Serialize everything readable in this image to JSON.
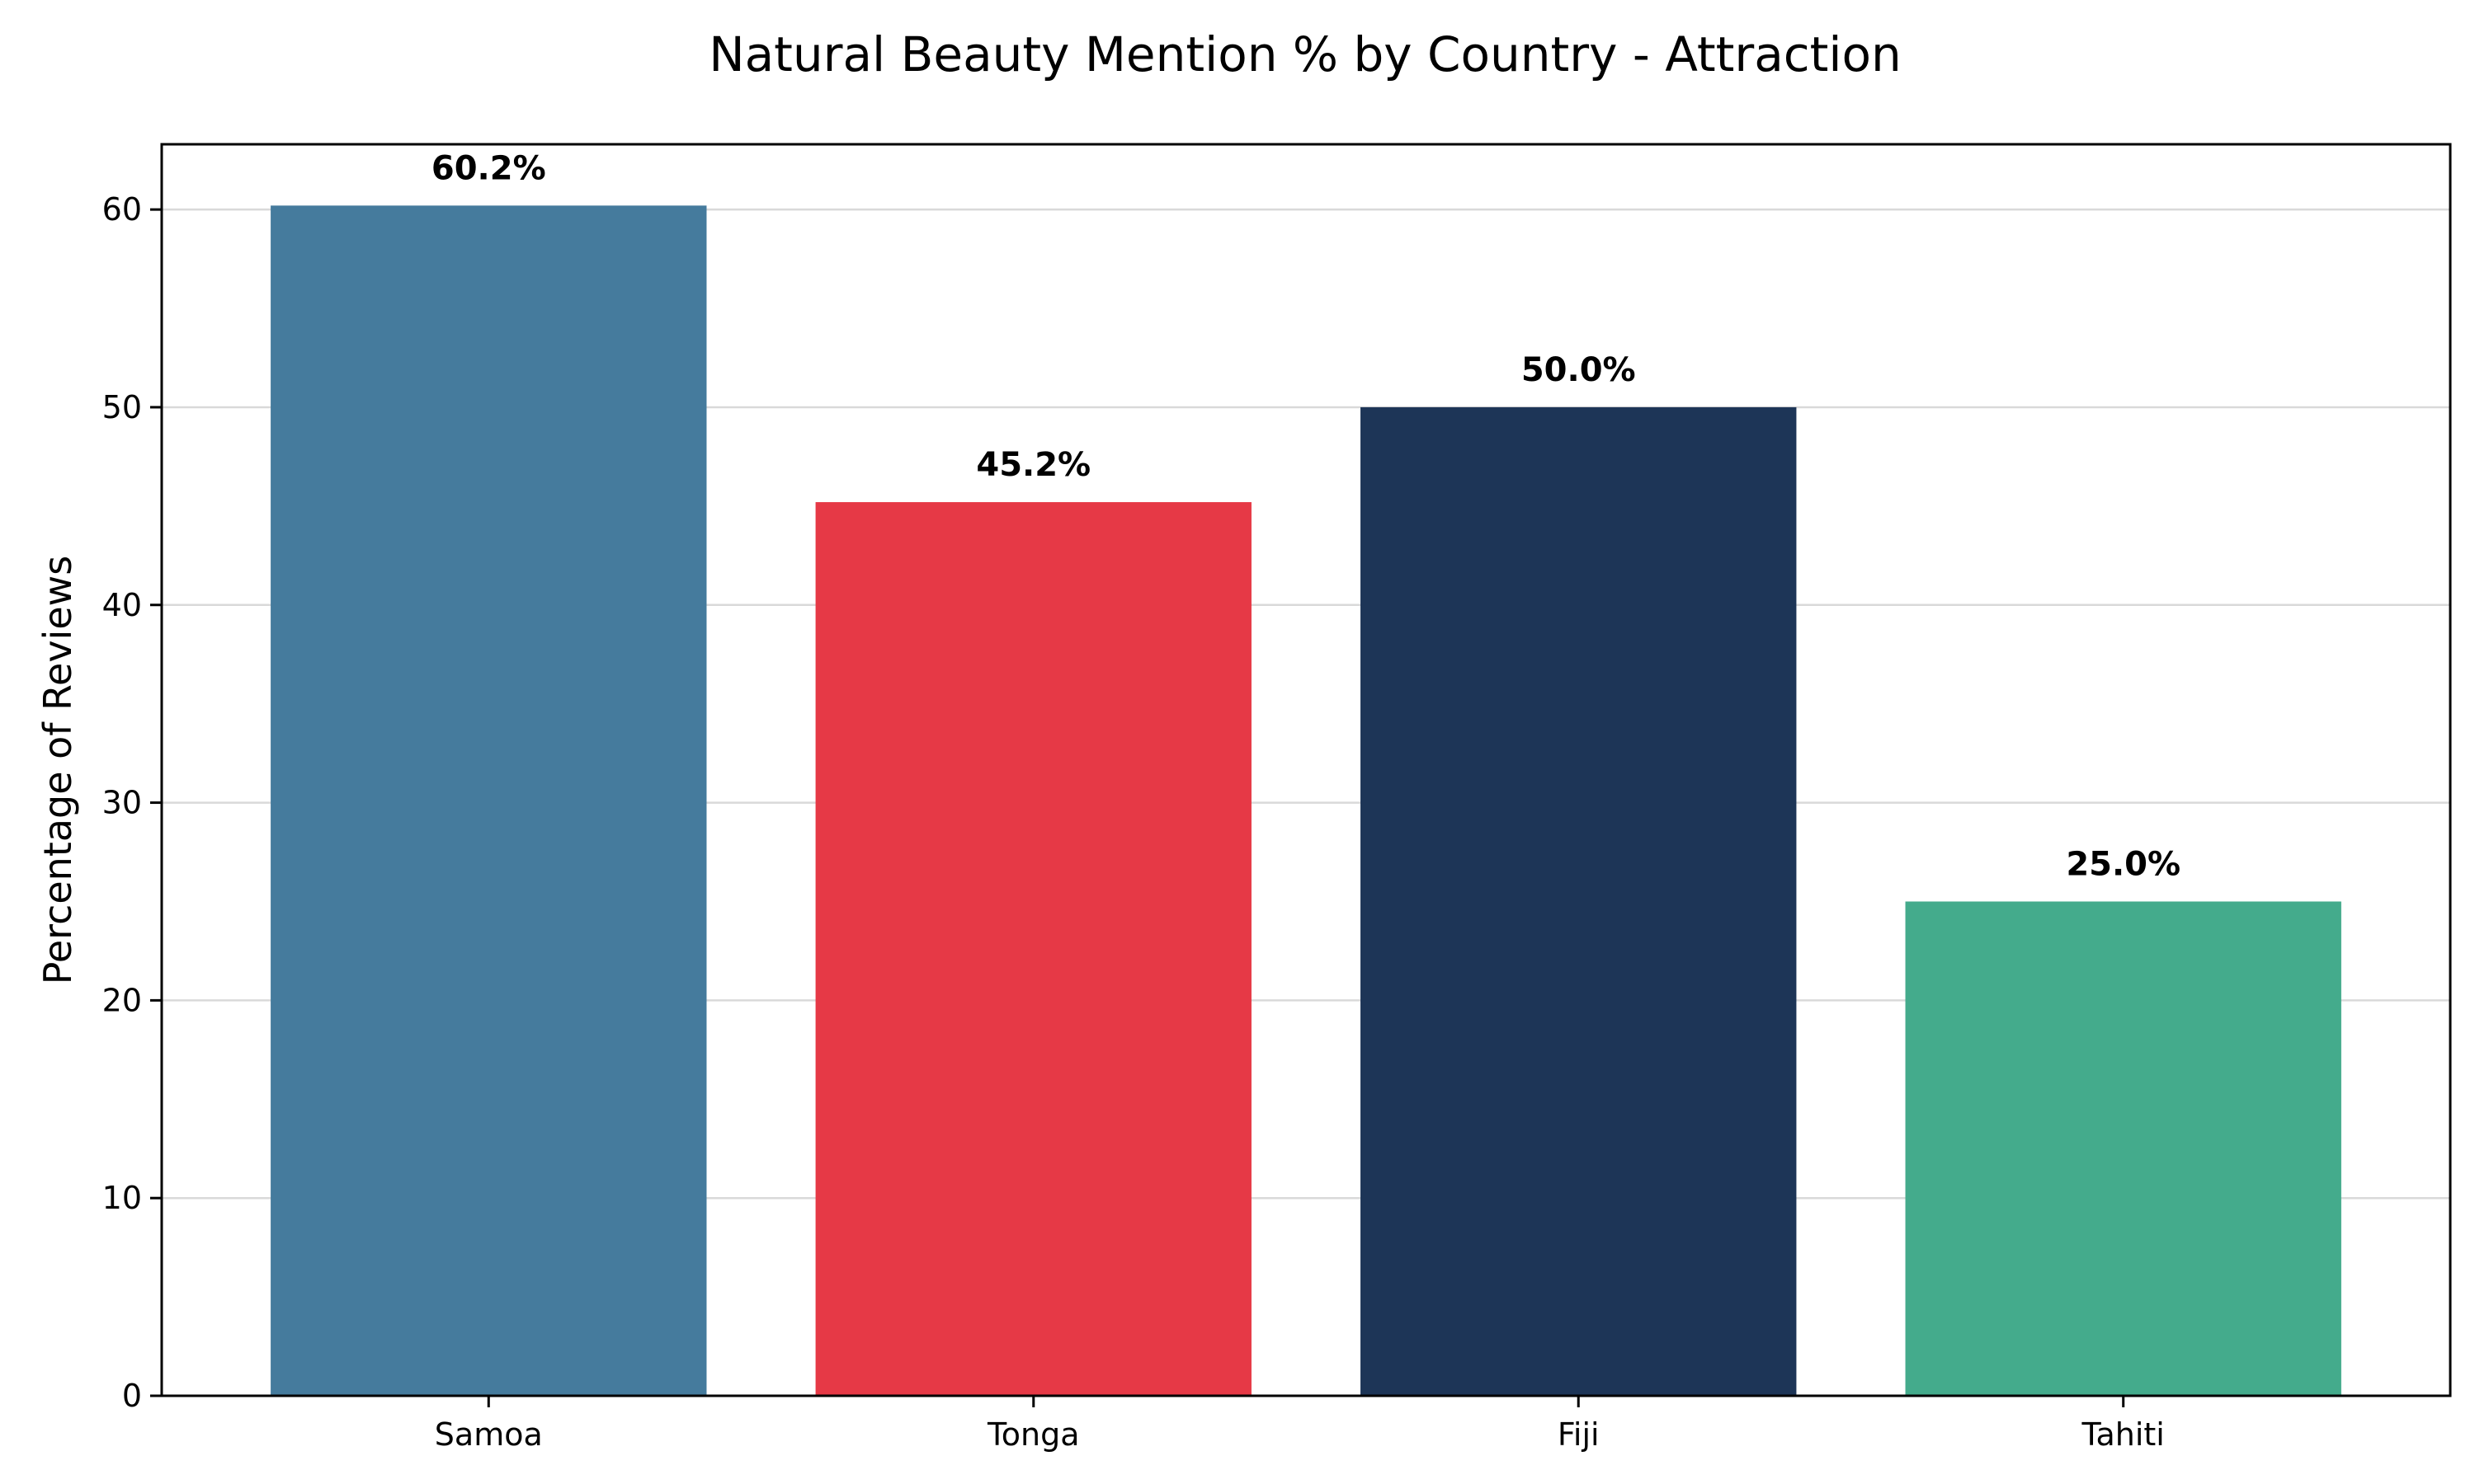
{
  "chart_data": {
    "type": "bar",
    "title": "Natural Beauty Mention % by Country - Attraction",
    "xlabel": "",
    "ylabel": "Percentage of Reviews",
    "categories": [
      "Samoa",
      "Tonga",
      "Fiji",
      "Tahiti"
    ],
    "values": [
      60.2,
      45.2,
      50.0,
      25.0
    ],
    "value_labels": [
      "60.2%",
      "45.2%",
      "50.0%",
      "25.0%"
    ],
    "colors": [
      "#457b9d",
      "#e63946",
      "#1d3557",
      "#44ab8c"
    ],
    "ylim": [
      0,
      63.3
    ],
    "yticks": [
      0,
      10,
      20,
      30,
      40,
      50,
      60
    ],
    "grid": true,
    "legend": "none"
  }
}
